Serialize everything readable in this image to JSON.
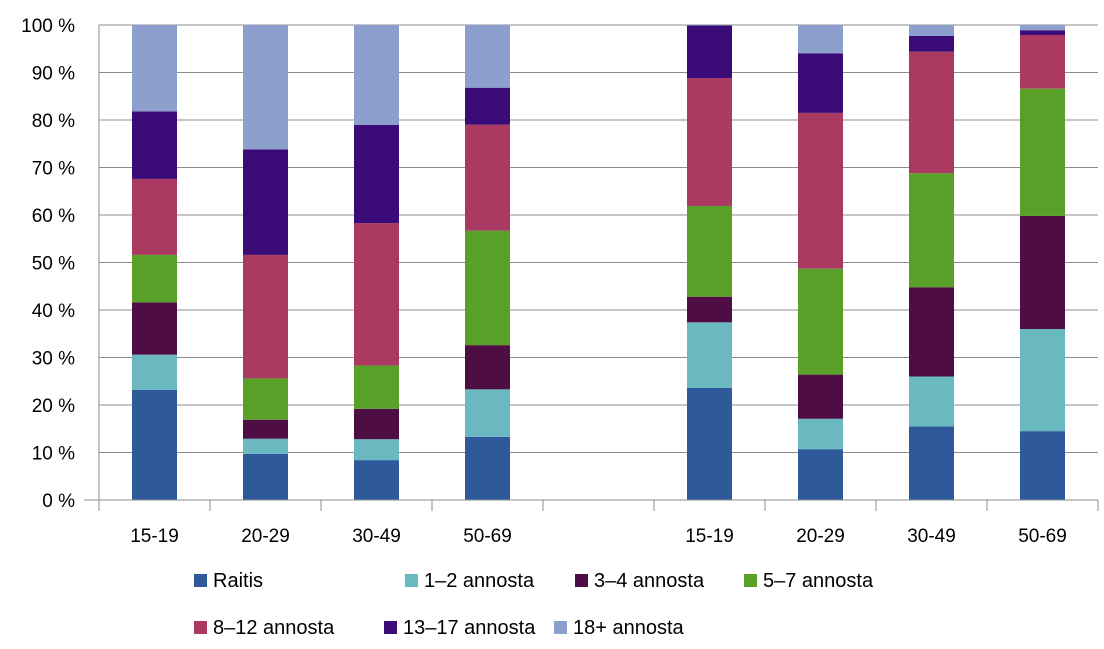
{
  "chart_data": {
    "type": "bar",
    "stacked": true,
    "percent": true,
    "categories": [
      "15-19",
      "20-29",
      "30-49",
      "50-69",
      "",
      "15-19",
      "20-29",
      "30-49",
      "50-69"
    ],
    "ylim": [
      0,
      100
    ],
    "yticks": [
      "0 %",
      "10 %",
      "20 %",
      "30 %",
      "40 %",
      "50 %",
      "60 %",
      "70 %",
      "80 %",
      "90 %",
      "100 %"
    ],
    "grid": true,
    "legend_position": "bottom",
    "series": [
      {
        "name": "Raitis",
        "color": "#2E5A9B",
        "values": [
          23.2,
          9.7,
          8.4,
          13.3,
          null,
          23.6,
          10.7,
          15.5,
          14.5
        ]
      },
      {
        "name": "1–2 annosta",
        "color": "#6BB9C0",
        "values": [
          7.4,
          3.2,
          4.4,
          10.0,
          null,
          13.8,
          6.4,
          10.5,
          21.5
        ]
      },
      {
        "name": "3–4 annosta",
        "color": "#4E0E44",
        "values": [
          11.0,
          4.0,
          6.4,
          9.3,
          null,
          5.4,
          9.3,
          18.8,
          23.8
        ]
      },
      {
        "name": "5–7 annosta",
        "color": "#59A029",
        "values": [
          10.0,
          8.7,
          9.1,
          24.1,
          null,
          19.1,
          22.3,
          24.0,
          26.8
        ]
      },
      {
        "name": "8–12 annosta",
        "color": "#AB3A62",
        "values": [
          16.0,
          26.0,
          30.0,
          22.3,
          null,
          26.9,
          32.8,
          25.6,
          11.3
        ]
      },
      {
        "name": "13–17 annosta",
        "color": "#3B0C78",
        "values": [
          14.2,
          22.2,
          20.7,
          7.8,
          null,
          11.1,
          12.5,
          3.3,
          1.0
        ]
      },
      {
        "name": "18+ annosta",
        "color": "#8DA0CD",
        "values": [
          18.2,
          26.2,
          21.0,
          13.2,
          null,
          0.1,
          6.0,
          2.3,
          1.1
        ]
      }
    ]
  }
}
